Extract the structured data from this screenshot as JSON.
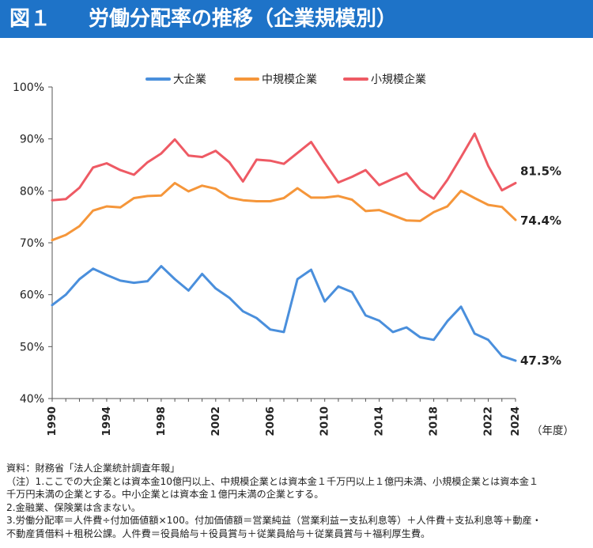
{
  "header": {
    "figure_number": "図１",
    "title": "労働分配率の推移（企業規模別）"
  },
  "chart_data": {
    "type": "line",
    "title": "労働分配率の推移（企業規模別）",
    "ylim": [
      40,
      100
    ],
    "yticks": [
      40,
      50,
      60,
      70,
      80,
      90,
      100
    ],
    "ytick_labels": [
      "40%",
      "50%",
      "60%",
      "70%",
      "80%",
      "90%",
      "100%"
    ],
    "xlim": [
      1990,
      2024
    ],
    "xticks": [
      1990,
      1994,
      1998,
      2002,
      2006,
      2010,
      2014,
      2018,
      2022,
      2024
    ],
    "xlabel": "（年度）",
    "grid": false,
    "legend_position": "top",
    "x": [
      1990,
      1991,
      1992,
      1993,
      1994,
      1995,
      1996,
      1997,
      1998,
      1999,
      2000,
      2001,
      2002,
      2003,
      2004,
      2005,
      2006,
      2007,
      2008,
      2009,
      2010,
      2011,
      2012,
      2013,
      2014,
      2015,
      2016,
      2017,
      2018,
      2019,
      2020,
      2021,
      2022,
      2023,
      2024
    ],
    "series": [
      {
        "name": "大企業",
        "color": "#4a8fdc",
        "values": [
          58.0,
          60.0,
          63.0,
          65.0,
          63.8,
          62.7,
          62.3,
          62.6,
          65.5,
          63.0,
          60.8,
          64.0,
          61.2,
          59.4,
          56.8,
          55.5,
          53.3,
          52.8,
          63.0,
          64.8,
          58.7,
          61.6,
          60.5,
          56.0,
          55.0,
          52.8,
          53.7,
          51.8,
          51.3,
          54.9,
          57.7,
          52.5,
          51.3,
          48.2,
          47.3
        ],
        "end_label": "47.3%"
      },
      {
        "name": "中規模企業",
        "color": "#f5963a",
        "values": [
          70.5,
          71.5,
          73.2,
          76.2,
          77.0,
          76.8,
          78.6,
          79.0,
          79.1,
          81.5,
          79.9,
          81.0,
          80.4,
          78.7,
          78.2,
          78.0,
          78.0,
          78.6,
          80.5,
          78.7,
          78.7,
          79.0,
          78.3,
          76.1,
          76.3,
          75.3,
          74.3,
          74.2,
          75.9,
          77.0,
          80.0,
          78.6,
          77.3,
          76.9,
          74.4
        ],
        "end_label": "74.4%"
      },
      {
        "name": "小規模企業",
        "color": "#ee5a64",
        "values": [
          78.2,
          78.4,
          80.6,
          84.5,
          85.3,
          84.0,
          83.1,
          85.5,
          87.2,
          89.9,
          86.8,
          86.5,
          87.7,
          85.5,
          81.8,
          86.0,
          85.8,
          85.2,
          87.3,
          89.4,
          85.4,
          81.6,
          82.7,
          84.0,
          81.1,
          82.3,
          83.4,
          80.2,
          78.5,
          82.1,
          86.5,
          91.0,
          84.8,
          80.1,
          81.5
        ],
        "end_label": "81.5%"
      }
    ]
  },
  "notes": [
    "資料：財務省「法人企業統計調査年報」",
    "（注）1.ここでの大企業とは資本金10億円以上、中規模企業とは資本金１千万円以上１億円未満、小規模企業とは資本金１",
    "千万円未満の企業とする。中小企業とは資本金１億円未満の企業とする。",
    "2.金融業、保険業は含まない。",
    "3.労働分配率＝人件費÷付加価値額×100。付加価値額＝営業純益（営業利益ー支払利息等）＋人件費＋支払利息等＋動産・",
    "不動産賃借料＋租税公課。人件費＝役員給与＋役員賞与＋従業員給与＋従業員賞与＋福利厚生費。"
  ]
}
